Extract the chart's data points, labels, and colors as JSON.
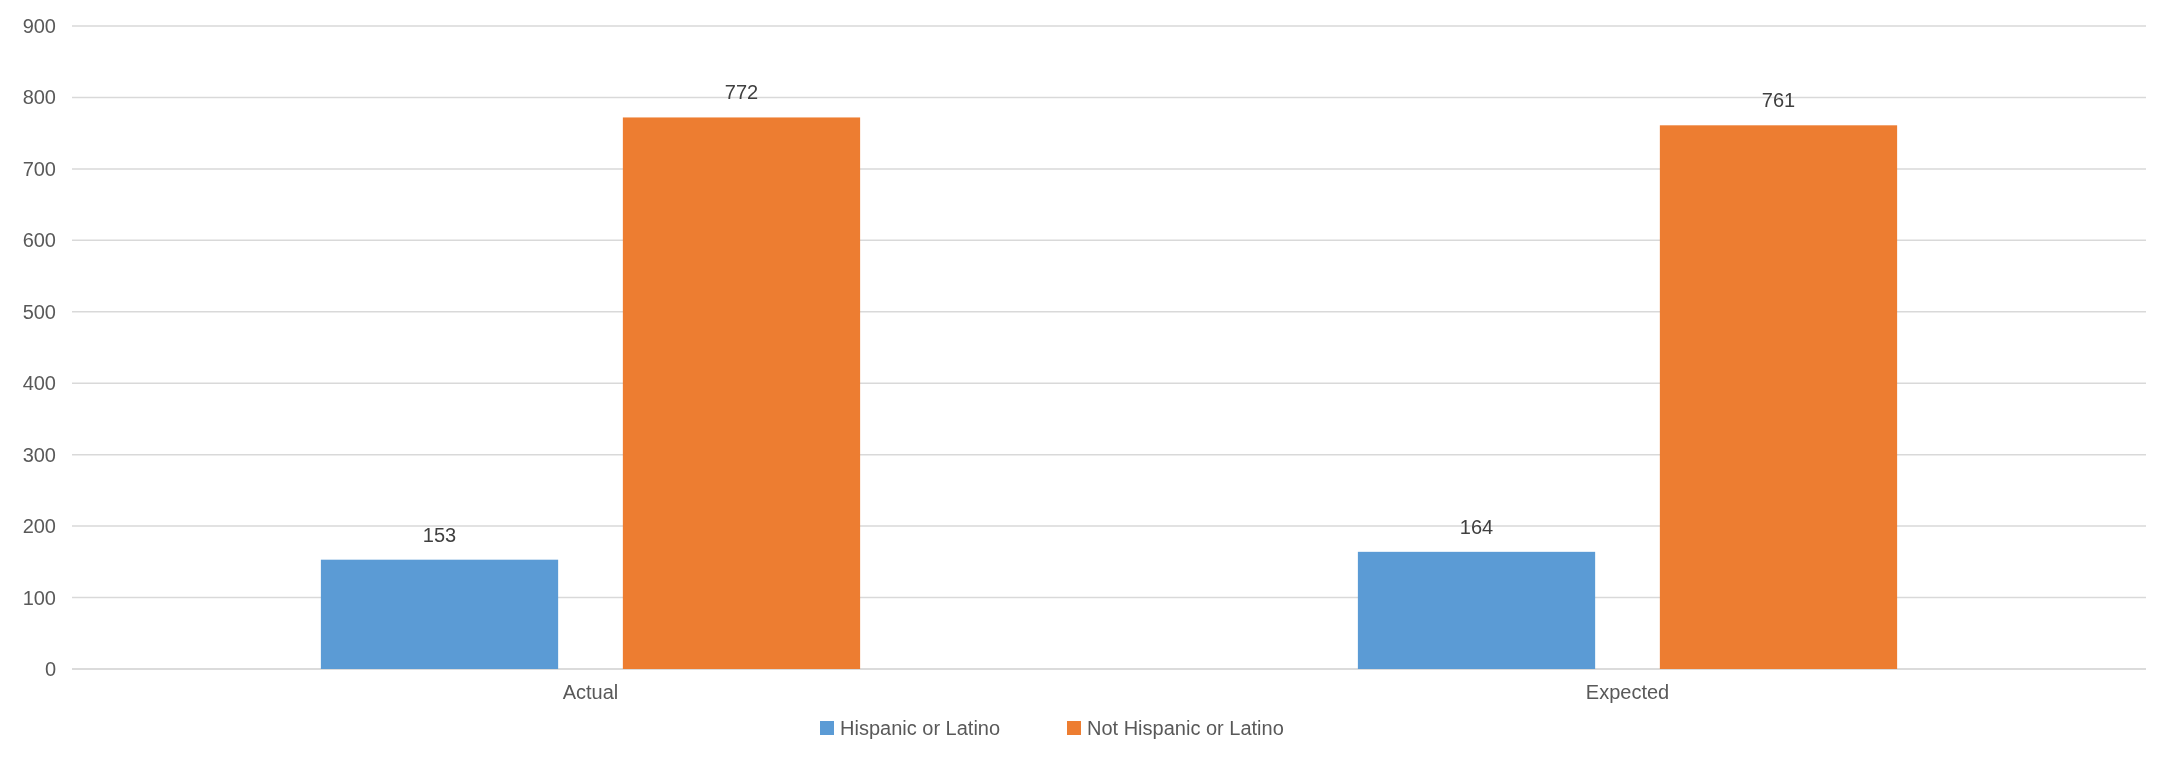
{
  "chart_data": {
    "type": "bar",
    "categories": [
      "Actual",
      "Expected"
    ],
    "series": [
      {
        "name": "Hispanic or Latino",
        "color": "#5b9bd5",
        "values": [
          153,
          164
        ]
      },
      {
        "name": "Not Hispanic or Latino",
        "color": "#ed7d31",
        "values": [
          772,
          761
        ]
      }
    ],
    "ylim": [
      0,
      900
    ],
    "yticks": [
      0,
      100,
      200,
      300,
      400,
      500,
      600,
      700,
      800,
      900
    ],
    "grid": "y",
    "legend": "bottom",
    "data_labels": true
  }
}
